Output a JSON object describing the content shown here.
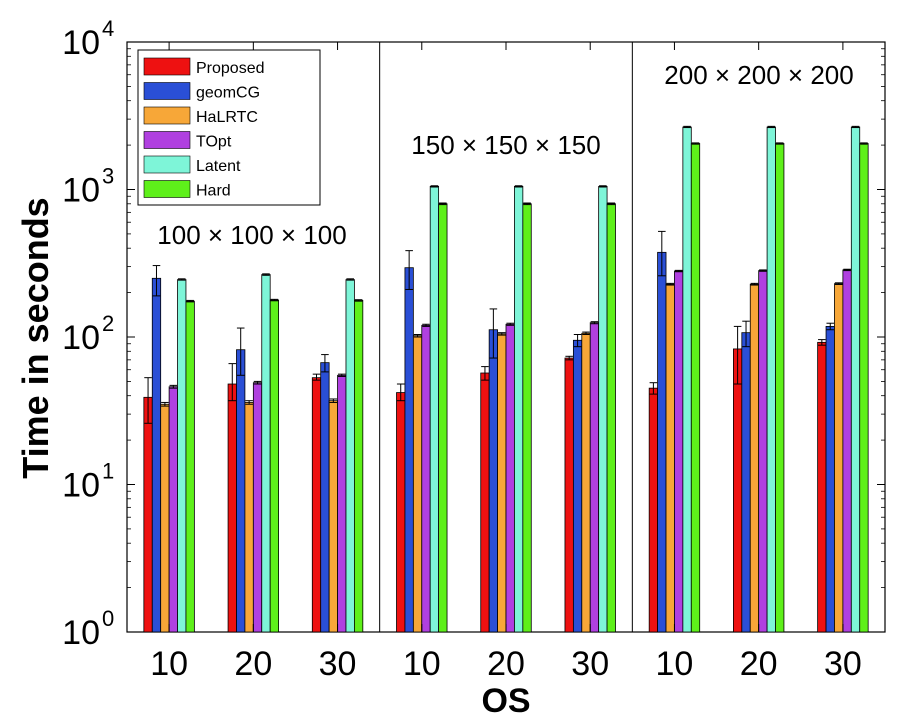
{
  "chart_data": {
    "type": "bar",
    "ylabel": "Time in seconds",
    "xlabel": "OS",
    "yscale": "log",
    "ylim": [
      1,
      10000
    ],
    "y_ticks": [
      {
        "value": 1,
        "base": "10",
        "exp": "0"
      },
      {
        "value": 10,
        "base": "10",
        "exp": "1"
      },
      {
        "value": 100,
        "base": "10",
        "exp": "2"
      },
      {
        "value": 1000,
        "base": "10",
        "exp": "3"
      },
      {
        "value": 10000,
        "base": "10",
        "exp": "4"
      }
    ],
    "categories": [
      "10",
      "20",
      "30",
      "10",
      "20",
      "30",
      "10",
      "20",
      "30"
    ],
    "panels": [
      {
        "label": "100 × 100 × 100"
      },
      {
        "label": "150 × 150 × 150"
      },
      {
        "label": "200 × 200 × 200"
      }
    ],
    "series": [
      {
        "name": "Proposed",
        "color": "#ee1111",
        "values": [
          39,
          48,
          53,
          42,
          57,
          72,
          45,
          83,
          92
        ],
        "err_low": [
          26,
          37,
          51,
          37,
          51,
          70,
          41,
          48,
          88
        ],
        "err_high": [
          53,
          66,
          56,
          48,
          63,
          74,
          49,
          118,
          96
        ]
      },
      {
        "name": "geomCG",
        "color": "#2a4fd6",
        "values": [
          250,
          82,
          67,
          295,
          112,
          95,
          375,
          107,
          118
        ],
        "err_low": [
          190,
          55,
          58,
          210,
          72,
          86,
          260,
          86,
          112
        ],
        "err_high": [
          305,
          115,
          76,
          385,
          155,
          104,
          520,
          128,
          124
        ]
      },
      {
        "name": "HaLRTC",
        "color": "#f7a738",
        "values": [
          35,
          36,
          37,
          102,
          105,
          106,
          228,
          228,
          230
        ],
        "err_low": [
          34,
          35,
          36,
          100,
          103,
          104,
          225,
          225,
          227
        ],
        "err_high": [
          36,
          37,
          38,
          104,
          107,
          108,
          231,
          231,
          233
        ]
      },
      {
        "name": "TOpt",
        "color": "#b040e0",
        "values": [
          46,
          49,
          55,
          120,
          122,
          125,
          280,
          282,
          285
        ],
        "err_low": [
          45,
          48,
          54,
          118,
          120,
          123,
          277,
          279,
          282
        ],
        "err_high": [
          47,
          50,
          56,
          122,
          124,
          127,
          283,
          285,
          288
        ]
      },
      {
        "name": "Latent",
        "color": "#7ef5d8",
        "values": [
          245,
          265,
          245,
          1050,
          1050,
          1050,
          2650,
          2650,
          2650
        ],
        "err_low": [
          243,
          262,
          243,
          1040,
          1040,
          1040,
          2630,
          2630,
          2630
        ],
        "err_high": [
          248,
          268,
          248,
          1060,
          1060,
          1060,
          2680,
          2680,
          2680
        ]
      },
      {
        "name": "Hard",
        "color": "#5ef01a",
        "values": [
          175,
          178,
          177,
          800,
          800,
          800,
          2050,
          2050,
          2050
        ],
        "err_low": [
          173,
          176,
          175,
          790,
          790,
          790,
          2030,
          2030,
          2030
        ],
        "err_high": [
          177,
          180,
          179,
          810,
          810,
          810,
          2070,
          2070,
          2070
        ]
      }
    ],
    "legend_position": "top-left",
    "grid": false
  }
}
